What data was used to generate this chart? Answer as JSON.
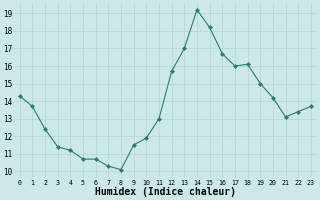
{
  "x": [
    0,
    1,
    2,
    3,
    4,
    5,
    6,
    7,
    8,
    9,
    10,
    11,
    12,
    13,
    14,
    15,
    16,
    17,
    18,
    19,
    20,
    21,
    22,
    23
  ],
  "y": [
    14.3,
    13.7,
    12.4,
    11.4,
    11.2,
    10.7,
    10.7,
    10.3,
    10.1,
    11.5,
    11.9,
    13.0,
    15.7,
    17.0,
    19.2,
    18.2,
    16.7,
    16.0,
    16.1,
    15.0,
    14.2,
    13.1,
    13.4,
    13.7
  ],
  "line_color": "#2d7d6b",
  "marker_color": "#2d7d6b",
  "bg_color": "#cce8e8",
  "grid_color": "#b0d8d8",
  "xlabel": "Humidex (Indice chaleur)",
  "xlabel_fontsize": 7,
  "ylabel_ticks": [
    10,
    11,
    12,
    13,
    14,
    15,
    16,
    17,
    18,
    19
  ],
  "xlim": [
    -0.5,
    23.5
  ],
  "ylim": [
    9.6,
    19.6
  ],
  "xtick_labels": [
    "0",
    "1",
    "2",
    "3",
    "4",
    "5",
    "6",
    "7",
    "8",
    "9",
    "10",
    "11",
    "12",
    "13",
    "14",
    "15",
    "16",
    "17",
    "18",
    "19",
    "20",
    "21",
    "22",
    "23"
  ]
}
